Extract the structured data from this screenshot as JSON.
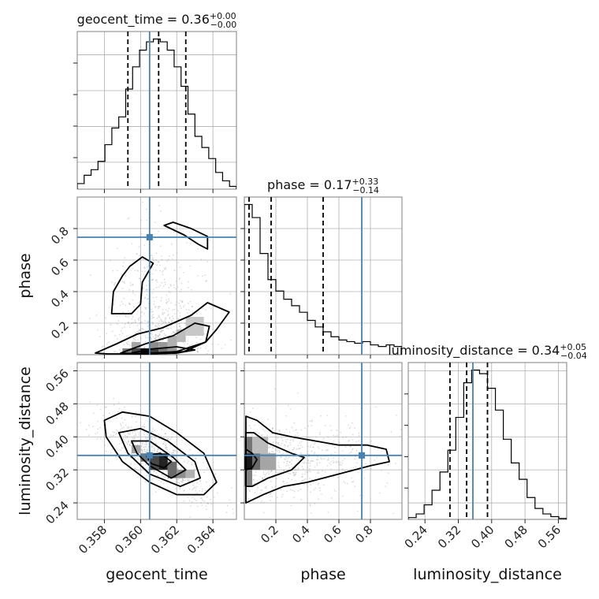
{
  "chart_data": {
    "type": "corner",
    "parameters": [
      "geocent_time",
      "phase",
      "luminosity_distance"
    ],
    "truth": {
      "geocent_time": 0.3605,
      "phase": 0.745,
      "luminosity_distance": 0.355
    },
    "ranges": {
      "geocent_time": [
        0.3565,
        0.3653
      ],
      "phase": [
        0.0,
        1.0
      ],
      "luminosity_distance": [
        0.2,
        0.58
      ]
    },
    "ticks": {
      "geocent_time": [
        0.358,
        0.36,
        0.362,
        0.364
      ],
      "phase": [
        0.2,
        0.4,
        0.6,
        0.8
      ],
      "luminosity_distance": [
        0.24,
        0.32,
        0.4,
        0.48,
        0.56
      ]
    },
    "tick_labels": {
      "geocent_time": [
        "0.358",
        "0.360",
        "0.362",
        "0.364"
      ],
      "phase": [
        "0.2",
        "0.4",
        "0.6",
        "0.8"
      ],
      "luminosity_distance": [
        "0.24",
        "0.32",
        "0.40",
        "0.48",
        "0.56"
      ]
    },
    "titles": {
      "geocent_time": {
        "prefix": "geocent_time = 0.36",
        "sup": "+0.00",
        "sub": "−0.00"
      },
      "phase": {
        "prefix": "phase = 0.17",
        "sup": "+0.33",
        "sub": "−0.14"
      },
      "luminosity_distance": {
        "prefix": "luminosity_distance = 0.34",
        "sup": "+0.05",
        "sub": "−0.04"
      }
    },
    "quantiles": {
      "geocent_time": [
        0.3593,
        0.361,
        0.3625
      ],
      "phase": [
        0.03,
        0.17,
        0.5
      ],
      "luminosity_distance": [
        0.3,
        0.34,
        0.39
      ]
    },
    "histograms": {
      "geocent_time": {
        "range": [
          0.3565,
          0.3653
        ],
        "counts": [
          0.2,
          0.5,
          0.7,
          1.0,
          1.6,
          2.2,
          2.6,
          3.6,
          4.4,
          5.0,
          5.3,
          5.4,
          5.3,
          5.0,
          4.4,
          3.7,
          2.7,
          1.9,
          1.5,
          1.1,
          0.6,
          0.3,
          0.1
        ]
      },
      "phase": {
        "range": [
          0.0,
          1.0
        ],
        "counts": [
          9.2,
          8.4,
          6.2,
          4.6,
          3.9,
          3.4,
          3.0,
          2.6,
          2.1,
          1.7,
          1.4,
          1.1,
          0.9,
          0.8,
          0.7,
          0.8,
          0.6,
          0.5,
          0.6,
          0.5
        ]
      },
      "luminosity_distance": {
        "range": [
          0.2,
          0.58
        ],
        "counts": [
          0.1,
          0.3,
          0.8,
          1.6,
          2.6,
          3.8,
          5.6,
          7.5,
          8.2,
          8.0,
          7.2,
          6.0,
          4.4,
          3.1,
          2.2,
          1.2,
          0.6,
          0.3,
          0.15,
          0.05
        ]
      }
    },
    "contours": {
      "phase_vs_geocent_time": [
        [
          [
            0.3575,
            0.01
          ],
          [
            0.3587,
            0.07
          ],
          [
            0.3598,
            0.13
          ],
          [
            0.3612,
            0.17
          ],
          [
            0.3628,
            0.25
          ],
          [
            0.3637,
            0.33
          ],
          [
            0.3649,
            0.27
          ],
          [
            0.3642,
            0.16
          ],
          [
            0.3636,
            0.08
          ],
          [
            0.362,
            0.02
          ],
          [
            0.36,
            0.005
          ],
          [
            0.3582,
            0.005
          ]
        ],
        [
          [
            0.3589,
            0.01
          ],
          [
            0.3603,
            0.07
          ],
          [
            0.3618,
            0.12
          ],
          [
            0.363,
            0.2
          ],
          [
            0.3638,
            0.18
          ],
          [
            0.3636,
            0.08
          ],
          [
            0.3624,
            0.02
          ],
          [
            0.36,
            0.005
          ]
        ],
        [
          [
            0.3595,
            0.01
          ],
          [
            0.3605,
            0.035
          ],
          [
            0.362,
            0.05
          ],
          [
            0.363,
            0.03
          ],
          [
            0.362,
            0.01
          ],
          [
            0.3605,
            0.005
          ]
        ],
        [
          [
            0.3584,
            0.26
          ],
          [
            0.3585,
            0.4
          ],
          [
            0.359,
            0.5
          ],
          [
            0.3594,
            0.56
          ],
          [
            0.3601,
            0.62
          ],
          [
            0.3607,
            0.58
          ],
          [
            0.3601,
            0.46
          ],
          [
            0.36,
            0.32
          ],
          [
            0.3595,
            0.26
          ]
        ],
        [
          [
            0.3613,
            0.82
          ],
          [
            0.3624,
            0.76
          ],
          [
            0.3632,
            0.7
          ],
          [
            0.3637,
            0.67
          ],
          [
            0.3637,
            0.75
          ],
          [
            0.3628,
            0.8
          ],
          [
            0.3618,
            0.84
          ]
        ]
      ],
      "luminosity_distance_vs_geocent_time": [
        [
          [
            0.358,
            0.44
          ],
          [
            0.359,
            0.46
          ],
          [
            0.3605,
            0.45
          ],
          [
            0.362,
            0.41
          ],
          [
            0.3635,
            0.36
          ],
          [
            0.3642,
            0.29
          ],
          [
            0.3635,
            0.26
          ],
          [
            0.362,
            0.26
          ],
          [
            0.3605,
            0.29
          ],
          [
            0.359,
            0.34
          ],
          [
            0.3581,
            0.4
          ]
        ],
        [
          [
            0.3588,
            0.41
          ],
          [
            0.36,
            0.42
          ],
          [
            0.3615,
            0.39
          ],
          [
            0.363,
            0.34
          ],
          [
            0.3633,
            0.3
          ],
          [
            0.3622,
            0.28
          ],
          [
            0.3605,
            0.31
          ],
          [
            0.3593,
            0.36
          ]
        ],
        [
          [
            0.3595,
            0.39
          ],
          [
            0.3605,
            0.39
          ],
          [
            0.3618,
            0.35
          ],
          [
            0.3625,
            0.32
          ],
          [
            0.3617,
            0.3
          ],
          [
            0.3605,
            0.33
          ],
          [
            0.3598,
            0.36
          ]
        ],
        [
          [
            0.3603,
            0.355
          ],
          [
            0.3611,
            0.36
          ],
          [
            0.3617,
            0.34
          ],
          [
            0.3613,
            0.325
          ],
          [
            0.3606,
            0.335
          ]
        ]
      ],
      "luminosity_distance_vs_phase": [
        [
          [
            0.01,
            0.45
          ],
          [
            0.08,
            0.44
          ],
          [
            0.18,
            0.41
          ],
          [
            0.3,
            0.4
          ],
          [
            0.45,
            0.39
          ],
          [
            0.6,
            0.38
          ],
          [
            0.78,
            0.38
          ],
          [
            0.9,
            0.37
          ],
          [
            0.92,
            0.34
          ],
          [
            0.8,
            0.33
          ],
          [
            0.6,
            0.31
          ],
          [
            0.4,
            0.29
          ],
          [
            0.25,
            0.28
          ],
          [
            0.12,
            0.26
          ],
          [
            0.01,
            0.24
          ]
        ],
        [
          [
            0.01,
            0.41
          ],
          [
            0.06,
            0.41
          ],
          [
            0.15,
            0.385
          ],
          [
            0.3,
            0.36
          ],
          [
            0.38,
            0.35
          ],
          [
            0.3,
            0.32
          ],
          [
            0.15,
            0.3
          ],
          [
            0.05,
            0.28
          ],
          [
            0.01,
            0.28
          ]
        ],
        [
          [
            0.01,
            0.37
          ],
          [
            0.05,
            0.36
          ],
          [
            0.08,
            0.345
          ],
          [
            0.05,
            0.325
          ],
          [
            0.01,
            0.32
          ]
        ]
      ]
    },
    "density_blocks": {
      "phase_vs_geocent_time": [
        {
          "x": 0.359,
          "y": 0.0,
          "w": 0.0005,
          "h": 0.04,
          "v": 0.45
        },
        {
          "x": 0.3595,
          "y": 0.0,
          "w": 0.0005,
          "h": 0.04,
          "v": 0.7
        },
        {
          "x": 0.36,
          "y": 0.0,
          "w": 0.0005,
          "h": 0.04,
          "v": 1.0
        },
        {
          "x": 0.3605,
          "y": 0.0,
          "w": 0.0005,
          "h": 0.04,
          "v": 0.75
        },
        {
          "x": 0.361,
          "y": 0.0,
          "w": 0.0005,
          "h": 0.04,
          "v": 0.5
        },
        {
          "x": 0.3615,
          "y": 0.0,
          "w": 0.0005,
          "h": 0.04,
          "v": 0.35
        },
        {
          "x": 0.3595,
          "y": 0.04,
          "w": 0.0005,
          "h": 0.04,
          "v": 0.3
        },
        {
          "x": 0.3605,
          "y": 0.04,
          "w": 0.0005,
          "h": 0.04,
          "v": 0.4
        },
        {
          "x": 0.361,
          "y": 0.04,
          "w": 0.0005,
          "h": 0.04,
          "v": 0.35
        },
        {
          "x": 0.3615,
          "y": 0.04,
          "w": 0.0005,
          "h": 0.08,
          "v": 0.25
        },
        {
          "x": 0.362,
          "y": 0.08,
          "w": 0.0005,
          "h": 0.08,
          "v": 0.2
        },
        {
          "x": 0.3625,
          "y": 0.12,
          "w": 0.001,
          "h": 0.12,
          "v": 0.15
        }
      ],
      "luminosity_distance_vs_geocent_time": [
        {
          "x": 0.36,
          "y": 0.34,
          "w": 0.0005,
          "h": 0.02,
          "v": 0.5
        },
        {
          "x": 0.3605,
          "y": 0.32,
          "w": 0.0005,
          "h": 0.04,
          "v": 0.7
        },
        {
          "x": 0.361,
          "y": 0.32,
          "w": 0.0005,
          "h": 0.04,
          "v": 0.85
        },
        {
          "x": 0.3615,
          "y": 0.3,
          "w": 0.0005,
          "h": 0.04,
          "v": 0.55
        },
        {
          "x": 0.362,
          "y": 0.3,
          "w": 0.0005,
          "h": 0.02,
          "v": 0.4
        },
        {
          "x": 0.3595,
          "y": 0.36,
          "w": 0.0005,
          "h": 0.02,
          "v": 0.3
        },
        {
          "x": 0.3625,
          "y": 0.3,
          "w": 0.0005,
          "h": 0.02,
          "v": 0.25
        }
      ],
      "luminosity_distance_vs_phase": [
        {
          "x": 0.0,
          "y": 0.32,
          "w": 0.05,
          "h": 0.04,
          "v": 0.9
        },
        {
          "x": 0.05,
          "y": 0.32,
          "w": 0.05,
          "h": 0.04,
          "v": 0.55
        },
        {
          "x": 0.0,
          "y": 0.36,
          "w": 0.05,
          "h": 0.04,
          "v": 0.5
        },
        {
          "x": 0.0,
          "y": 0.28,
          "w": 0.05,
          "h": 0.04,
          "v": 0.45
        },
        {
          "x": 0.1,
          "y": 0.32,
          "w": 0.1,
          "h": 0.04,
          "v": 0.3
        },
        {
          "x": 0.05,
          "y": 0.36,
          "w": 0.1,
          "h": 0.04,
          "v": 0.2
        }
      ]
    }
  }
}
